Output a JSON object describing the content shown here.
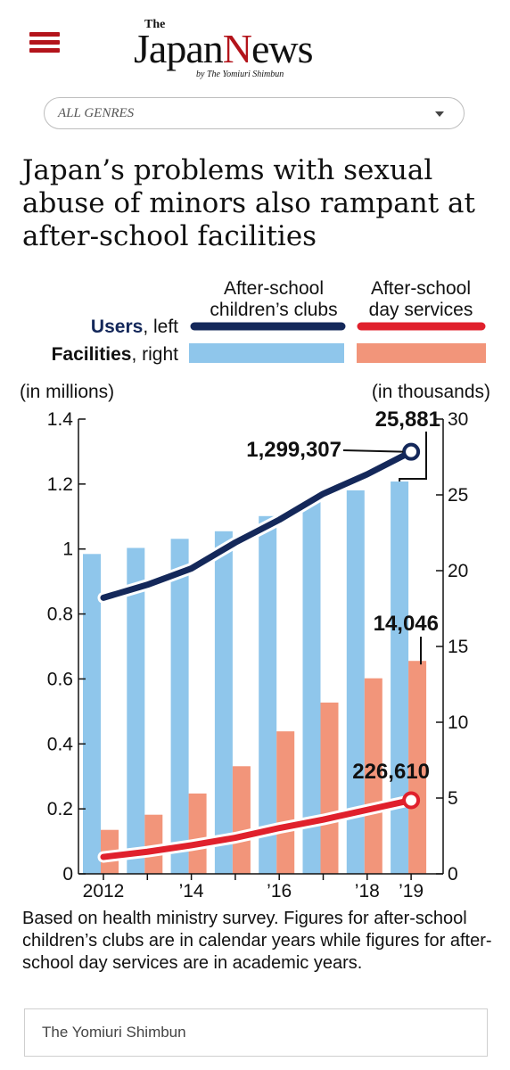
{
  "header": {
    "logo_the": "The",
    "logo_japan": "Japan",
    "logo_n": "N",
    "logo_ews": "ews",
    "logo_byline": "by The Yomiuri Shimbun"
  },
  "genre_select": {
    "value": "ALL GENRES"
  },
  "article": {
    "headline": "Japan’s problems with sexual abuse of minors also rampant at after-school facilities"
  },
  "colors": {
    "brand_red": "#b3141b",
    "clubs_users": "#14285a",
    "services_users": "#e0202c",
    "clubs_facilities": "#8fc6eb",
    "services_facilities": "#f2957a"
  },
  "chart_data": {
    "type": "bar",
    "legend": {
      "col_clubs": [
        "After-school",
        "children’s clubs"
      ],
      "col_services": [
        "After-school",
        "day services"
      ],
      "row_users_bold": "Users",
      "row_users_rest": ", left",
      "row_facilities_bold": "Facilities",
      "row_facilities_rest": ", right"
    },
    "left_axis": {
      "label": "(in millions)",
      "min": 0,
      "max": 1.4,
      "ticks": [
        "0",
        "0.2",
        "0.4",
        "0.6",
        "0.8",
        "1",
        "1.2",
        "1.4"
      ]
    },
    "right_axis": {
      "label": "(in thousands)",
      "min": 0,
      "max": 30,
      "ticks": [
        "0",
        "5",
        "10",
        "15",
        "20",
        "25",
        "30"
      ]
    },
    "x": [
      2012,
      2013,
      2014,
      2015,
      2016,
      2017,
      2018,
      2019
    ],
    "x_tick_labels": [
      "2012",
      "",
      "’14",
      "",
      "’16",
      "",
      "’18",
      "’19"
    ],
    "series": [
      {
        "name": "After-school children’s clubs",
        "measure": "Facilities",
        "axis": "right",
        "kind": "bar",
        "values": [
          21.1,
          21.5,
          22.1,
          22.6,
          23.6,
          24.6,
          25.3,
          25.881
        ]
      },
      {
        "name": "After-school day services",
        "measure": "Facilities",
        "axis": "right",
        "kind": "bar",
        "values": [
          2.9,
          3.9,
          5.3,
          7.1,
          9.4,
          11.3,
          12.9,
          14.046
        ]
      },
      {
        "name": "After-school children’s clubs",
        "measure": "Users",
        "axis": "left",
        "kind": "line",
        "values": [
          0.85,
          0.89,
          0.94,
          1.02,
          1.09,
          1.17,
          1.23,
          1.299307
        ]
      },
      {
        "name": "After-school day services",
        "measure": "Users",
        "axis": "left",
        "kind": "line",
        "values": [
          0.052,
          0.068,
          0.088,
          0.111,
          0.141,
          0.167,
          0.197,
          0.22661
        ]
      }
    ],
    "annotations": [
      "1,299,307",
      "25,881",
      "14,046",
      "226,610"
    ]
  },
  "caption": "Based on health ministry survey. Figures for after-school children’s clubs are in calendar years while figures for after-school day services are in academic years.",
  "credit": "The Yomiuri Shimbun"
}
